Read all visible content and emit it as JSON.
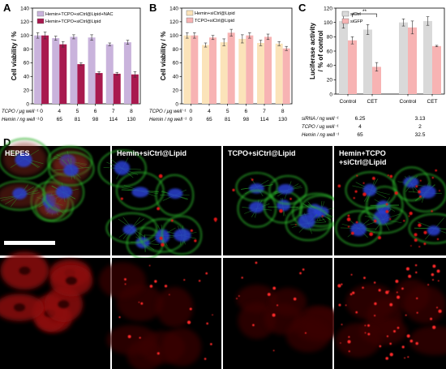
{
  "panels": {
    "A": {
      "letter": "A",
      "chart_data": {
        "type": "bar",
        "ylabel": "Cell viability / %",
        "ylim": [
          0,
          140
        ],
        "yticks": [
          0,
          20,
          40,
          60,
          80,
          100,
          120,
          140
        ],
        "legend_position": "top",
        "rows": [
          {
            "label": "TCPO / μg well⁻¹",
            "values": [
              "0",
              "4",
              "5",
              "6",
              "7",
              "8"
            ]
          },
          {
            "label": "Hemin / ng well⁻¹",
            "values": [
              "0",
              "65",
              "81",
              "98",
              "114",
              "130"
            ]
          }
        ],
        "series": [
          {
            "name": "Hemin+TCPO+siCtrl@Lipid+NAC",
            "color": "#c9b3dc",
            "values": [
              100,
              96,
              98,
              97,
              87,
              90
            ],
            "errors": [
              4,
              3,
              3,
              4,
              2,
              3
            ]
          },
          {
            "name": "Hemin+TCPO+siCtrl@Lipid",
            "color": "#a8194e",
            "values": [
              100,
              87,
              58,
              45,
              44,
              43
            ],
            "errors": [
              5,
              4,
              2,
              2,
              2,
              4
            ]
          }
        ]
      }
    },
    "B": {
      "letter": "B",
      "chart_data": {
        "type": "bar",
        "ylabel": "Cell viability / %",
        "ylim": [
          0,
          140
        ],
        "yticks": [
          0,
          20,
          40,
          60,
          80,
          100,
          120,
          140
        ],
        "legend_position": "top",
        "rows": [
          {
            "label": "TCPO / μg well⁻¹",
            "values": [
              "0",
              "4",
              "5",
              "6",
              "7",
              "8"
            ]
          },
          {
            "label": "Hemin / ng well⁻¹",
            "values": [
              "0",
              "65",
              "81",
              "98",
              "114",
              "130"
            ]
          }
        ],
        "series": [
          {
            "name": "Hemin+siCtrl@Lipid",
            "color": "#fbe3b9",
            "values": [
              100,
              86,
              90,
              95,
              89,
              88
            ],
            "errors": [
              4,
              3,
              5,
              6,
              4,
              3
            ]
          },
          {
            "name": "TCPO+siCtrl@Lipid",
            "color": "#f7b3b3",
            "values": [
              100,
              97,
              104,
              100,
              98,
              81
            ],
            "errors": [
              4,
              3,
              5,
              4,
              4,
              3
            ]
          }
        ]
      }
    },
    "C": {
      "letter": "C",
      "chart_data": {
        "type": "bar",
        "ylabel_lines": [
          "Luciferase activity",
          "/ % of control"
        ],
        "ylim": [
          0,
          120
        ],
        "yticks": [
          0,
          20,
          40,
          60,
          80,
          100,
          120
        ],
        "legend_position": "top",
        "categories": [
          "Control",
          "CET",
          "Control",
          "CET"
        ],
        "significance": "**",
        "rows": [
          {
            "label": "siRNA / ng well⁻¹",
            "values": [
              "6.25",
              "3.13"
            ]
          },
          {
            "label": "TCPO / ug well⁻¹",
            "values": [
              "4",
              "2"
            ]
          },
          {
            "label": "Hemin / ng well⁻¹",
            "values": [
              "65",
              "32.5"
            ]
          }
        ],
        "series": [
          {
            "name": "siCtrl",
            "color": "#d9d9d9",
            "values": [
              102,
              90,
              100,
              102
            ],
            "errors": [
              10,
              7,
              5,
              6
            ]
          },
          {
            "name": "siGFP",
            "color": "#f7b3b3",
            "values": [
              75,
              38,
              93,
              67
            ],
            "errors": [
              5,
              6,
              9,
              1
            ]
          }
        ]
      }
    },
    "D": {
      "letter": "D",
      "labels": [
        "HEPES",
        "Hemin+siCtrl@Lipid",
        "TCPO+siCtrl@Lipid",
        "Hemin+TCPO\n+siCtrl@Lipid"
      ],
      "colors": {
        "actin": "#2bb52b",
        "nucleus": "#2a3fd0",
        "red": "#e01818",
        "background": "#000000"
      }
    }
  }
}
